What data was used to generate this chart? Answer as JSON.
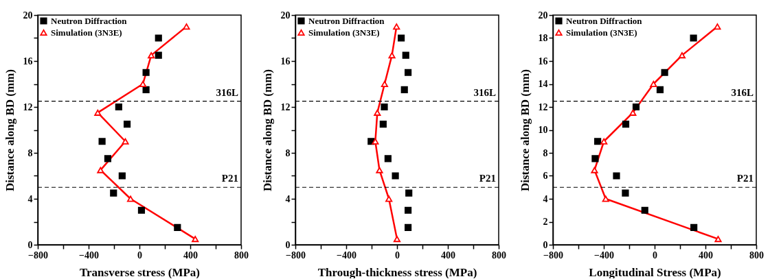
{
  "chart_data": [
    {
      "type": "scatter",
      "xlabel": "Transverse stress (MPa)",
      "ylabel": "Distance along BD (mm)",
      "xlim": [
        -800,
        800
      ],
      "ylim": [
        0,
        20
      ],
      "xticks": [
        -800,
        {
          "value": -600,
          "label": null
        },
        -400,
        {
          "value": -200,
          "label": null
        },
        0,
        {
          "value": 200,
          "label": null
        },
        400,
        {
          "value": 600,
          "label": null
        },
        800
      ],
      "yticks": [
        0,
        {
          "value": 2,
          "label": null
        },
        4,
        {
          "value": 6,
          "label": null
        },
        8,
        {
          "value": 10,
          "label": null
        },
        12,
        {
          "value": 14,
          "label": null
        },
        16,
        {
          "value": 18,
          "label": null
        },
        20
      ],
      "grid": false,
      "legend": "top left",
      "ref_lines": [
        {
          "axis": "y",
          "value": 12.5,
          "label": "316L",
          "line_style": "dashed",
          "color": "#000000"
        },
        {
          "axis": "y",
          "value": 5,
          "label": "P21",
          "line_style": "dashed",
          "color": "#000000"
        }
      ],
      "series": [
        {
          "name": "Neutron Diffraction",
          "type": "scatter",
          "color": "#000000",
          "marker": "square",
          "x": [
            150,
            150,
            52,
            52,
            -163,
            -97,
            -294,
            -249,
            -136,
            -204,
            16,
            299
          ],
          "values": [
            18,
            16.5,
            15,
            13.5,
            12,
            10.5,
            9,
            7.5,
            6,
            4.5,
            3,
            1.5
          ]
        },
        {
          "name": "Simulation (3N3E)",
          "type": "line",
          "color": "#ff0000",
          "marker": "triangle",
          "x": [
            370,
            93,
            27,
            -328,
            -111,
            -306,
            -70,
            439
          ],
          "values": [
            19,
            16.5,
            14,
            11.5,
            9,
            6.5,
            4,
            0.5
          ]
        }
      ]
    },
    {
      "type": "scatter",
      "xlabel": "Through-thickness stress (MPa)",
      "ylabel": "Distance along BD (mm)",
      "xlim": [
        -800,
        800
      ],
      "ylim": [
        0,
        20
      ],
      "xticks": [
        -800,
        {
          "value": -600,
          "label": null
        },
        -400,
        {
          "value": -200,
          "label": null
        },
        0,
        {
          "value": 200,
          "label": null
        },
        400,
        {
          "value": 600,
          "label": null
        },
        800
      ],
      "yticks": [
        0,
        {
          "value": 2,
          "label": null
        },
        4,
        {
          "value": 6,
          "label": null
        },
        8,
        {
          "value": 10,
          "label": null
        },
        12,
        {
          "value": 14,
          "label": null
        },
        16,
        {
          "value": 18,
          "label": null
        },
        20
      ],
      "grid": false,
      "legend": "top left",
      "ref_lines": [
        {
          "axis": "y",
          "value": 12.5,
          "label": "316L",
          "line_style": "dashed",
          "color": "#000000"
        },
        {
          "axis": "y",
          "value": 5,
          "label": "P21",
          "line_style": "dashed",
          "color": "#000000"
        }
      ],
      "series": [
        {
          "name": "Neutron Diffraction",
          "type": "scatter",
          "color": "#000000",
          "marker": "square",
          "x": [
            33,
            69,
            87,
            58,
            -100,
            -109,
            -204,
            -71,
            -13,
            93,
            87,
            87
          ],
          "values": [
            18,
            16.5,
            15,
            13.5,
            12,
            10.5,
            9,
            7.5,
            6,
            4.5,
            3,
            1.5
          ]
        },
        {
          "name": "Simulation (3N3E)",
          "type": "line",
          "color": "#ff0000",
          "marker": "triangle",
          "x": [
            -4,
            -40,
            -98,
            -155,
            -171,
            -138,
            -64,
            0
          ],
          "values": [
            19,
            16.5,
            14,
            11.5,
            9,
            6.5,
            4,
            0.5
          ]
        }
      ]
    },
    {
      "type": "scatter",
      "xlabel": "Longitudinal Stress (MPa)",
      "ylabel": "Distance along BD (mm)",
      "xlim": [
        -800,
        800
      ],
      "ylim": [
        0,
        20
      ],
      "xticks": [
        -800,
        {
          "value": -600,
          "label": null
        },
        -400,
        {
          "value": -200,
          "label": null
        },
        0,
        {
          "value": 200,
          "label": null
        },
        400,
        {
          "value": 600,
          "label": null
        },
        800
      ],
      "yticks": [
        0,
        2,
        4,
        6,
        8,
        10,
        12,
        14,
        16,
        18,
        20
      ],
      "grid": false,
      "legend": "top left",
      "ref_lines": [
        {
          "axis": "y",
          "value": 12.5,
          "label": "316L",
          "line_style": "dashed",
          "color": "#000000"
        },
        {
          "axis": "y",
          "value": 5,
          "label": "P21",
          "line_style": "dashed",
          "color": "#000000"
        }
      ],
      "series": [
        {
          "name": "Neutron Diffraction",
          "type": "scatter",
          "color": "#000000",
          "marker": "square",
          "x": [
            306,
            79,
            43,
            -146,
            -227,
            -448,
            -468,
            -300,
            -230,
            -77,
            309
          ],
          "values": [
            18,
            15,
            13.5,
            12,
            10.5,
            9,
            7.5,
            6,
            4.5,
            3,
            1.5
          ]
        },
        {
          "name": "Simulation (3N3E)",
          "type": "line",
          "color": "#ff0000",
          "marker": "triangle",
          "x": [
            494,
            216,
            -9,
            -171,
            -399,
            -473,
            -385,
            500
          ],
          "values": [
            19,
            16.5,
            14,
            11.5,
            9,
            6.5,
            4,
            0.5
          ]
        }
      ]
    }
  ]
}
